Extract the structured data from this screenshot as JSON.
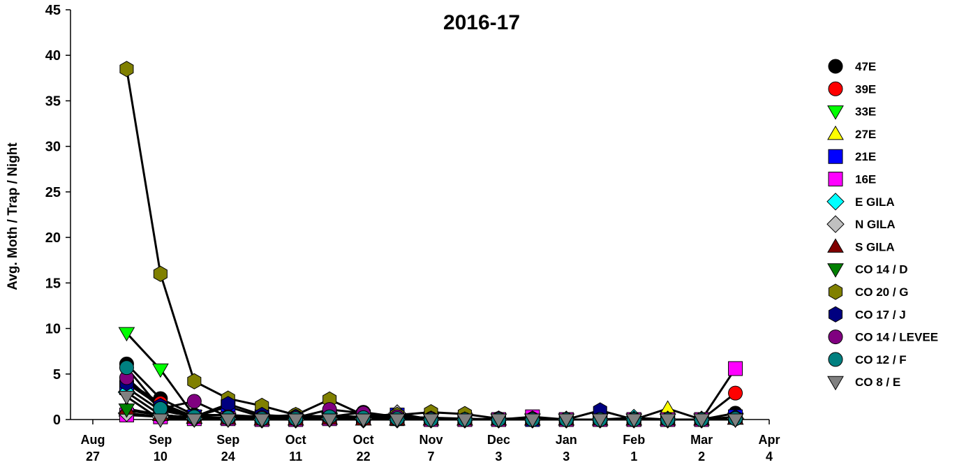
{
  "chart_data": {
    "type": "line",
    "title": "2016-17",
    "y_label": "Avg. Moth / Trap / Night",
    "x": [
      0.5,
      1,
      1.5,
      2,
      2.5,
      3,
      3.5,
      4,
      4.5,
      5,
      5.5,
      6,
      6.5,
      7,
      7.5,
      8,
      8.5,
      9,
      9.5
    ],
    "xlim": [
      -0.33,
      10
    ],
    "xticks": [
      {
        "value": 0,
        "label": "Aug 27"
      },
      {
        "value": 1,
        "label": "Sep 10"
      },
      {
        "value": 2,
        "label": "Sep 24"
      },
      {
        "value": 3,
        "label": "Oct 11"
      },
      {
        "value": 4,
        "label": "Oct 22"
      },
      {
        "value": 5,
        "label": "Nov 7"
      },
      {
        "value": 6,
        "label": "Dec 3"
      },
      {
        "value": 7,
        "label": "Jan 3"
      },
      {
        "value": 8,
        "label": "Feb 1"
      },
      {
        "value": 9,
        "label": "Mar 2"
      },
      {
        "value": 10,
        "label": "Apr 4"
      }
    ],
    "ylim": [
      0,
      45
    ],
    "yticks": [
      0,
      5,
      10,
      15,
      20,
      25,
      30,
      35,
      40,
      45
    ],
    "line_color": "#000000",
    "series": [
      {
        "name": "47E",
        "color": "#000000",
        "marker": "circle",
        "values": [
          6.1,
          2.3,
          0.5,
          0.5,
          0.3,
          0.5,
          0.3,
          0.8,
          0.3,
          0.2,
          0.1,
          0,
          0,
          0,
          0,
          0,
          0,
          0,
          0.7
        ]
      },
      {
        "name": "39E",
        "color": "#ff0000",
        "marker": "circle",
        "values": [
          4.2,
          1.8,
          0.3,
          0.2,
          0.1,
          0.1,
          0.2,
          0.2,
          0.1,
          0.1,
          0,
          0,
          0,
          0,
          0,
          0,
          0,
          0,
          2.9
        ]
      },
      {
        "name": "33E",
        "color": "#00ff00",
        "marker": "triangle-down",
        "values": [
          9.5,
          5.5,
          0.4,
          0.1,
          0,
          0,
          0.1,
          0,
          0,
          0,
          0,
          0,
          0,
          0,
          0,
          0,
          0,
          0,
          0.1
        ]
      },
      {
        "name": "27E",
        "color": "#ffff00",
        "marker": "triangle-up",
        "values": [
          1.0,
          0.5,
          0.2,
          0.1,
          0,
          0,
          0.1,
          0,
          0,
          0,
          0,
          0,
          0,
          0,
          0,
          0,
          1.2,
          0,
          0.1
        ]
      },
      {
        "name": "21E",
        "color": "#0000ff",
        "marker": "square",
        "values": [
          3.5,
          1.0,
          0.3,
          1.4,
          0.3,
          0.1,
          0.2,
          0.3,
          0.5,
          0.1,
          0,
          0,
          0,
          0,
          0,
          0,
          0,
          0,
          0.3
        ]
      },
      {
        "name": "16E",
        "color": "#ff00ff",
        "marker": "square",
        "values": [
          0.5,
          0.3,
          0.1,
          0.1,
          0,
          0,
          0.1,
          0.2,
          0.1,
          0,
          0,
          0,
          0.3,
          0,
          0,
          0,
          0,
          0,
          5.6
        ]
      },
      {
        "name": "E GILA",
        "color": "#00ffff",
        "marker": "diamond",
        "values": [
          3.0,
          0.5,
          0.2,
          0.1,
          0,
          0,
          0.1,
          0,
          0,
          0,
          0,
          0,
          0,
          0,
          0,
          0.2,
          0,
          0,
          0.1
        ]
      },
      {
        "name": "N GILA",
        "color": "#c0c0c0",
        "marker": "diamond",
        "values": [
          0.7,
          0.3,
          0.1,
          0.1,
          0,
          0,
          0.1,
          0.1,
          0.7,
          0,
          0,
          0,
          0,
          0,
          0,
          0,
          0,
          0,
          0.1
        ]
      },
      {
        "name": "S GILA",
        "color": "#800000",
        "marker": "triangle-up",
        "values": [
          1.2,
          0.5,
          0.2,
          0.1,
          0,
          0,
          0.1,
          0,
          0,
          0,
          0,
          0,
          0,
          0,
          0,
          0,
          0,
          0,
          0.1
        ]
      },
      {
        "name": "CO 14 / D",
        "color": "#008000",
        "marker": "triangle-down",
        "values": [
          1.1,
          0.5,
          0.1,
          0,
          0,
          0,
          0.1,
          0,
          0,
          0,
          0,
          0,
          0,
          0,
          0,
          0,
          0,
          0,
          0
        ]
      },
      {
        "name": "CO 20 / G",
        "color": "#808000",
        "marker": "hexagon",
        "values": [
          38.5,
          16,
          4.2,
          2.3,
          1.5,
          0.5,
          2.2,
          0.5,
          0.5,
          0.8,
          0.6,
          0.1,
          0.1,
          0,
          0,
          0,
          0,
          0,
          0.2
        ]
      },
      {
        "name": "CO 17 / J",
        "color": "#000080",
        "marker": "hexagon",
        "values": [
          4.0,
          1.5,
          0.3,
          1.7,
          0.5,
          0.3,
          0.4,
          0.3,
          0.2,
          0.1,
          0,
          0,
          0,
          0,
          1.0,
          0,
          0,
          0,
          0.2
        ]
      },
      {
        "name": "CO 14 / LEVEE",
        "color": "#800080",
        "marker": "circle",
        "values": [
          4.6,
          1.2,
          2.0,
          0.3,
          0.2,
          0.2,
          1.1,
          0.7,
          0.3,
          0.1,
          0,
          0.1,
          0,
          0,
          0,
          0,
          0,
          0,
          0.1
        ]
      },
      {
        "name": "CO 12 / F",
        "color": "#008080",
        "marker": "circle",
        "values": [
          5.7,
          1.2,
          0.3,
          0.2,
          0.1,
          0.1,
          0.3,
          0.2,
          0.1,
          0,
          0,
          0,
          0,
          0,
          0,
          0,
          0,
          0,
          0.1
        ]
      },
      {
        "name": "CO 8 / E",
        "color": "#808080",
        "marker": "triangle-down",
        "values": [
          2.5,
          0,
          0,
          0,
          0,
          0,
          0,
          0,
          0,
          0,
          0,
          0,
          0,
          0,
          0,
          0,
          0,
          0,
          0
        ]
      }
    ]
  }
}
